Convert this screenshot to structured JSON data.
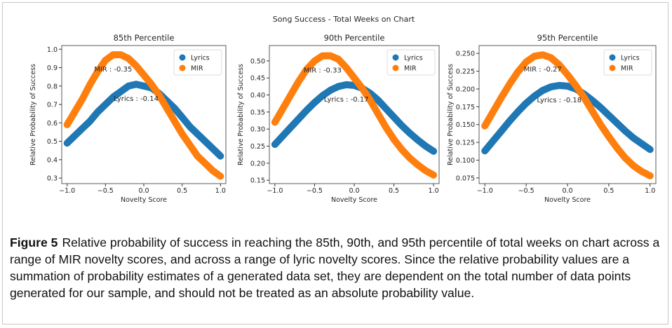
{
  "figure": {
    "suptitle": "Song Success - Total Weeks on Chart"
  },
  "chart_data": [
    {
      "type": "scatter",
      "title": "85th Percentile",
      "xlabel": "Novelty Score",
      "ylabel": "Relative Probability of Success",
      "x": [
        -1,
        -0.9,
        -0.8,
        -0.7,
        -0.6,
        -0.5,
        -0.4,
        -0.3,
        -0.2,
        -0.1,
        0,
        0.1,
        0.2,
        0.3,
        0.4,
        0.5,
        0.6,
        0.7,
        0.8,
        0.9,
        1
      ],
      "series": [
        {
          "name": "Lyrics",
          "color": "#1f77b4",
          "values": [
            0.49,
            0.53,
            0.57,
            0.61,
            0.66,
            0.7,
            0.74,
            0.77,
            0.8,
            0.81,
            0.8,
            0.79,
            0.76,
            0.72,
            0.68,
            0.63,
            0.58,
            0.54,
            0.5,
            0.46,
            0.42
          ]
        },
        {
          "name": "MIR",
          "color": "#ff7f0e",
          "values": [
            0.59,
            0.66,
            0.73,
            0.81,
            0.88,
            0.94,
            0.97,
            0.97,
            0.95,
            0.91,
            0.86,
            0.81,
            0.75,
            0.68,
            0.61,
            0.54,
            0.48,
            0.42,
            0.38,
            0.34,
            0.31
          ]
        }
      ],
      "annotations": [
        "Lyrics : -0.14",
        "MIR : -0.35"
      ],
      "xlim": [
        -1.07,
        1.07
      ],
      "xticks": [
        {
          "value": -1,
          "label": "−1.0"
        },
        {
          "value": -0.5,
          "label": "−0.5"
        },
        {
          "value": 0,
          "label": "0.0"
        },
        0.5,
        {
          "value": 1,
          "label": "1.0"
        }
      ],
      "ylim": [
        0.27,
        1.02
      ],
      "yticks": [
        0.3,
        0.4,
        0.5,
        0.6,
        0.7,
        0.8,
        0.9,
        {
          "value": 1,
          "label": "1.0"
        }
      ],
      "legend": "upper right"
    },
    {
      "type": "scatter",
      "title": "90th Percentile",
      "xlabel": "Novelty Score",
      "ylabel": "Relative Probability of Success",
      "x": [
        -1,
        -0.9,
        -0.8,
        -0.7,
        -0.6,
        -0.5,
        -0.4,
        -0.3,
        -0.2,
        -0.1,
        0,
        0.1,
        0.2,
        0.3,
        0.4,
        0.5,
        0.6,
        0.7,
        0.8,
        0.9,
        1
      ],
      "series": [
        {
          "name": "Lyrics",
          "color": "#1f77b4",
          "values": [
            0.255,
            0.28,
            0.305,
            0.33,
            0.355,
            0.378,
            0.398,
            0.414,
            0.425,
            0.43,
            0.428,
            0.42,
            0.405,
            0.385,
            0.36,
            0.335,
            0.31,
            0.288,
            0.268,
            0.25,
            0.235
          ]
        },
        {
          "name": "MIR",
          "color": "#ff7f0e",
          "values": [
            0.32,
            0.36,
            0.4,
            0.44,
            0.475,
            0.5,
            0.515,
            0.515,
            0.505,
            0.48,
            0.45,
            0.42,
            0.385,
            0.345,
            0.305,
            0.27,
            0.24,
            0.215,
            0.195,
            0.178,
            0.165
          ]
        }
      ],
      "annotations": [
        "Lyrics : -0.17",
        "MIR : -0.33"
      ],
      "xlim": [
        -1.07,
        1.07
      ],
      "xticks": [
        {
          "value": -1,
          "label": "−1.0"
        },
        {
          "value": -0.5,
          "label": "−0.5"
        },
        {
          "value": 0,
          "label": "0.0"
        },
        0.5,
        {
          "value": 1,
          "label": "1.0"
        }
      ],
      "ylim": [
        0.14,
        0.545
      ],
      "yticks": [
        0.15,
        {
          "value": 0.2,
          "label": "0.20"
        },
        0.25,
        {
          "value": 0.3,
          "label": "0.30"
        },
        0.35,
        {
          "value": 0.4,
          "label": "0.40"
        },
        0.45,
        {
          "value": 0.5,
          "label": "0.50"
        }
      ],
      "legend": "upper right"
    },
    {
      "type": "scatter",
      "title": "95th Percentile",
      "xlabel": "Novelty Score",
      "ylabel": "Relative Probability of Success",
      "x": [
        -1,
        -0.9,
        -0.8,
        -0.7,
        -0.6,
        -0.5,
        -0.4,
        -0.3,
        -0.2,
        -0.1,
        0,
        0.1,
        0.2,
        0.3,
        0.4,
        0.5,
        0.6,
        0.7,
        0.8,
        0.9,
        1
      ],
      "series": [
        {
          "name": "Lyrics",
          "color": "#1f77b4",
          "values": [
            0.113,
            0.127,
            0.141,
            0.155,
            0.168,
            0.18,
            0.19,
            0.198,
            0.203,
            0.205,
            0.204,
            0.2,
            0.193,
            0.184,
            0.174,
            0.163,
            0.152,
            0.141,
            0.131,
            0.123,
            0.115
          ]
        },
        {
          "name": "MIR",
          "color": "#ff7f0e",
          "values": [
            0.148,
            0.168,
            0.188,
            0.207,
            0.224,
            0.238,
            0.246,
            0.248,
            0.244,
            0.234,
            0.22,
            0.205,
            0.188,
            0.169,
            0.15,
            0.133,
            0.117,
            0.103,
            0.092,
            0.084,
            0.078
          ]
        }
      ],
      "annotations": [
        "Lyrics : -0.18",
        "MIR : -0.27"
      ],
      "xlim": [
        -1.07,
        1.07
      ],
      "xticks": [
        {
          "value": -1,
          "label": "−1.0"
        },
        {
          "value": -0.5,
          "label": "−0.5"
        },
        {
          "value": 0,
          "label": "0.0"
        },
        0.5,
        {
          "value": 1,
          "label": "1.0"
        }
      ],
      "ylim": [
        0.067,
        0.261
      ],
      "yticks": [
        0.075,
        {
          "value": 0.1,
          "label": "0.100"
        },
        0.125,
        {
          "value": 0.15,
          "label": "0.150"
        },
        0.175,
        {
          "value": 0.2,
          "label": "0.200"
        },
        0.225,
        {
          "value": 0.25,
          "label": "0.250"
        }
      ],
      "legend": "upper right"
    }
  ],
  "caption": {
    "label": "Figure 5",
    "text": "Relative probability of success in reaching the 85th, 90th, and 95th percentile of total weeks on chart across a range of MIR novelty scores, and across a range of lyric novelty scores. Since the relative probability values are a summation of probability estimates of a generated data set, they are dependent on the total number of data points generated for our sample, and should not be treated as an absolute probability value."
  }
}
